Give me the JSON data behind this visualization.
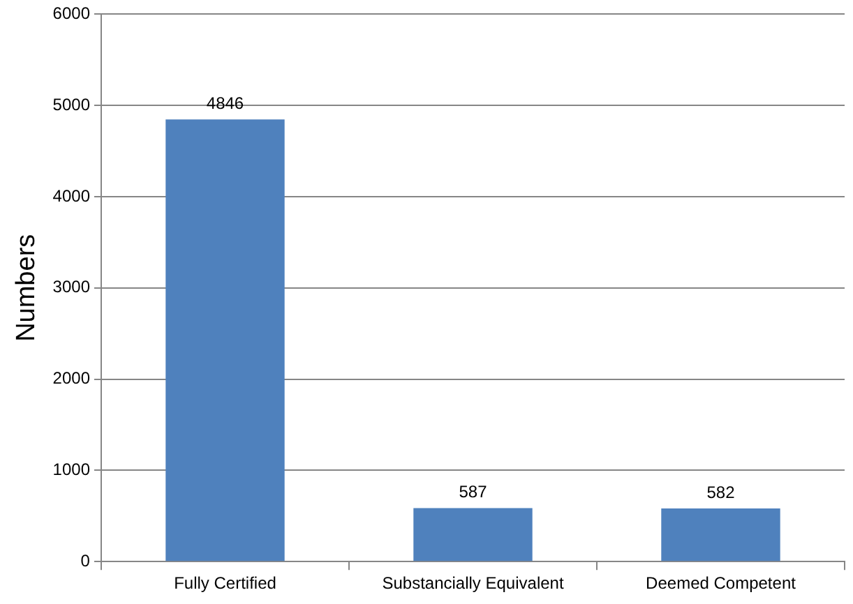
{
  "chart_data": {
    "type": "bar",
    "ylabel": "Numbers",
    "categories": [
      "Fully Certified",
      "Substancially Equivalent",
      "Deemed Competent"
    ],
    "values": [
      4846,
      587,
      582
    ],
    "color": "#4f81bd",
    "ylim": [
      0,
      6000
    ],
    "yticks": [
      0,
      1000,
      2000,
      3000,
      4000,
      5000,
      6000
    ],
    "grid": "y",
    "data_labels": true,
    "legend": false
  }
}
